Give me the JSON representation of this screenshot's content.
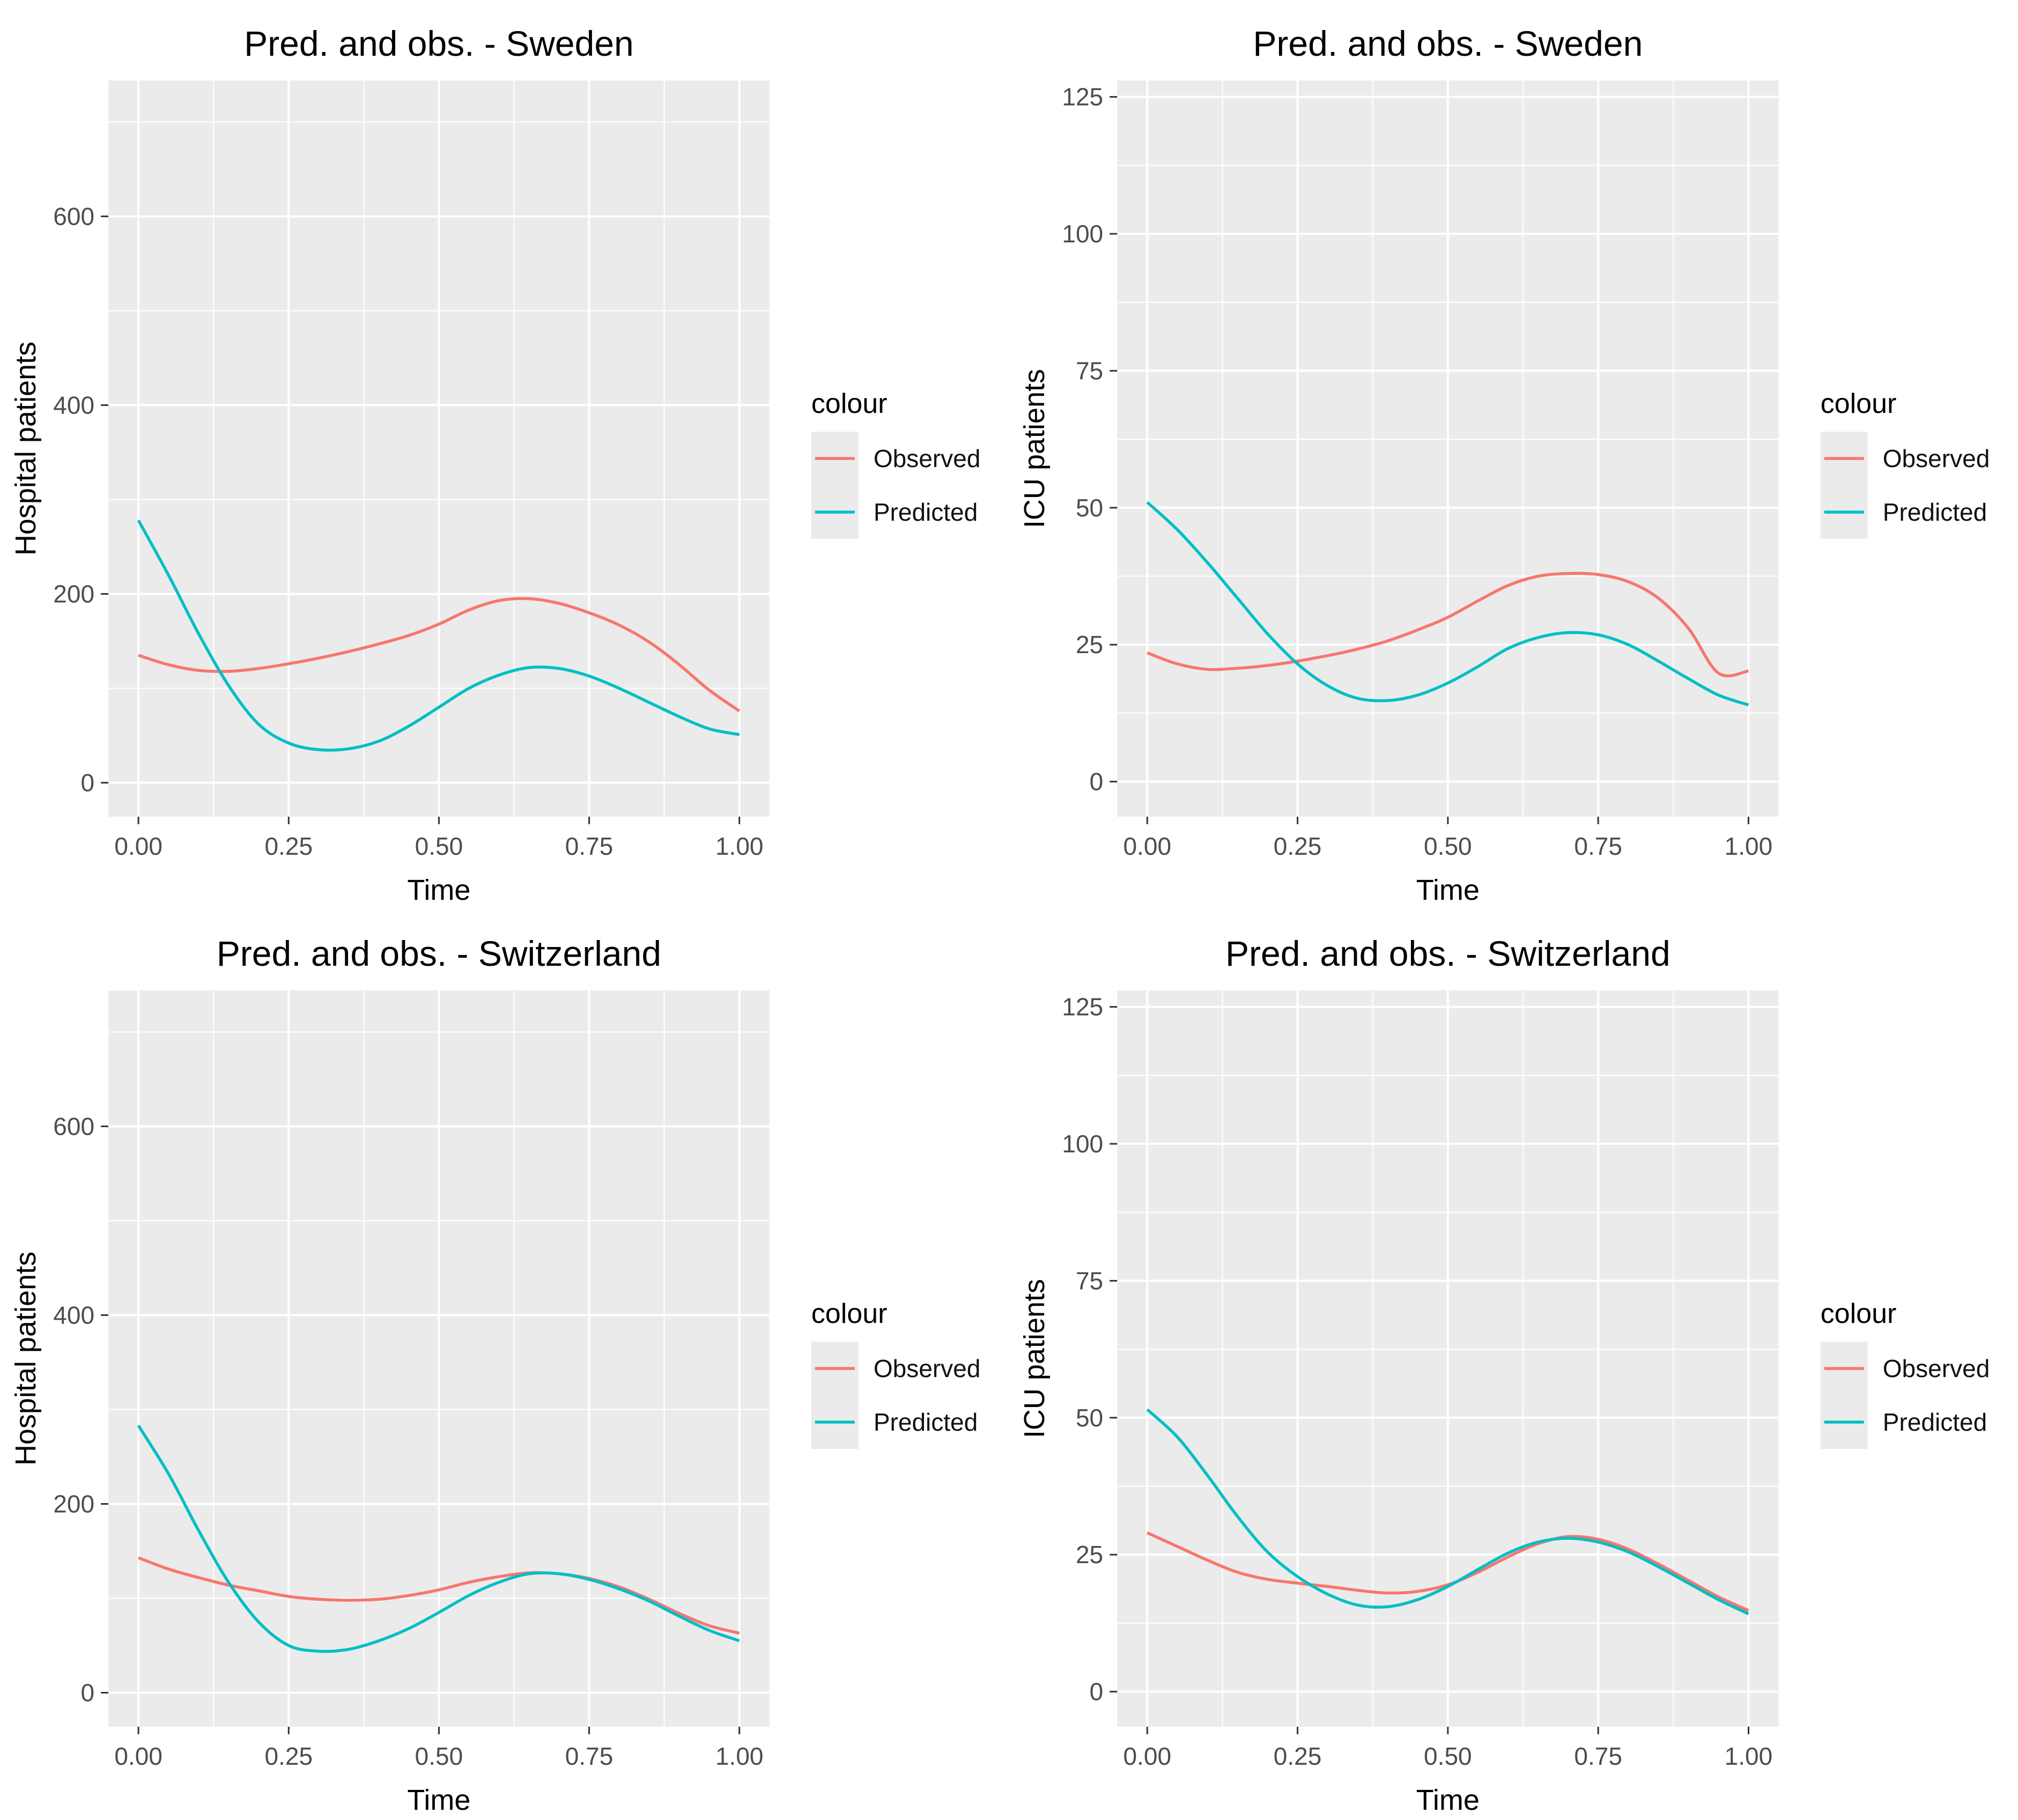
{
  "palette": {
    "observed": "#F8766D",
    "predicted": "#00BFC4",
    "panel_bg": "#EBEBEB",
    "grid_line": "#FFFFFF",
    "tick_mark": "#333333",
    "tick_label": "#4D4D4D",
    "text": "#000000"
  },
  "legend": {
    "title": "colour",
    "entries": [
      {
        "label": "Observed",
        "color": "#F8766D"
      },
      {
        "label": "Predicted",
        "color": "#00BFC4"
      }
    ]
  },
  "chart_data": [
    {
      "type": "line",
      "title": "Pred. and obs. - Sweden",
      "xlabel": "Time",
      "ylabel": "Hospital patients",
      "legend_title": "colour",
      "legend_position": "right",
      "grid": true,
      "xlim": [
        -0.05,
        1.05
      ],
      "ylim": [
        -36,
        744
      ],
      "x_ticks": {
        "values": [
          0,
          0.25,
          0.5,
          0.75,
          1.0
        ],
        "labels": [
          "0.00",
          "0.25",
          "0.50",
          "0.75",
          "1.00"
        ]
      },
      "y_ticks": {
        "values": [
          0,
          200,
          400,
          600
        ],
        "labels": [
          "0",
          "200",
          "400",
          "600"
        ]
      },
      "x_minor": [
        0.125,
        0.375,
        0.625,
        0.875
      ],
      "y_minor": [
        100,
        300,
        500,
        700
      ],
      "x": [
        0,
        0.05,
        0.1,
        0.15,
        0.2,
        0.25,
        0.3,
        0.35,
        0.4,
        0.45,
        0.5,
        0.55,
        0.6,
        0.65,
        0.7,
        0.75,
        0.8,
        0.85,
        0.9,
        0.95,
        1.0
      ],
      "series": [
        {
          "name": "Observed",
          "color": "#F8766D",
          "values": [
            135,
            125,
            119,
            118,
            121,
            126,
            132,
            139,
            147,
            156,
            168,
            183,
            193,
            195,
            190,
            180,
            167,
            149,
            125,
            98,
            76
          ]
        },
        {
          "name": "Predicted",
          "color": "#00BFC4",
          "values": [
            278,
            220,
            158,
            103,
            62,
            42,
            35,
            36,
            44,
            60,
            80,
            100,
            114,
            122,
            121,
            113,
            100,
            85,
            70,
            57,
            51
          ]
        }
      ]
    },
    {
      "type": "line",
      "title": "Pred. and obs. - Sweden",
      "xlabel": "Time",
      "ylabel": "ICU patients",
      "legend_title": "colour",
      "legend_position": "right",
      "grid": true,
      "xlim": [
        -0.05,
        1.05
      ],
      "ylim": [
        -6.4,
        128
      ],
      "x_ticks": {
        "values": [
          0,
          0.25,
          0.5,
          0.75,
          1.0
        ],
        "labels": [
          "0.00",
          "0.25",
          "0.50",
          "0.75",
          "1.00"
        ]
      },
      "y_ticks": {
        "values": [
          0,
          25,
          50,
          75,
          100,
          125
        ],
        "labels": [
          "0",
          "25",
          "50",
          "75",
          "100",
          "125"
        ]
      },
      "x_minor": [
        0.125,
        0.375,
        0.625,
        0.875
      ],
      "y_minor": [
        12.5,
        37.5,
        62.5,
        87.5,
        112.5
      ],
      "x": [
        0,
        0.05,
        0.1,
        0.15,
        0.2,
        0.25,
        0.3,
        0.35,
        0.4,
        0.45,
        0.5,
        0.55,
        0.6,
        0.65,
        0.7,
        0.75,
        0.8,
        0.85,
        0.9,
        0.95,
        1.0
      ],
      "series": [
        {
          "name": "Observed",
          "color": "#F8766D",
          "values": [
            23.5,
            21.5,
            20.5,
            20.7,
            21.2,
            22,
            23,
            24.2,
            25.7,
            27.7,
            30,
            33,
            35.8,
            37.5,
            38,
            37.8,
            36.5,
            33.5,
            28,
            19.8,
            20.2
          ]
        },
        {
          "name": "Predicted",
          "color": "#00BFC4",
          "values": [
            51,
            46,
            40,
            33.5,
            27,
            21.5,
            17.5,
            15.2,
            14.8,
            15.8,
            18,
            21,
            24.3,
            26.3,
            27.2,
            26.8,
            25,
            22,
            18.8,
            15.8,
            14
          ]
        }
      ]
    },
    {
      "type": "line",
      "title": "Pred. and obs. - Switzerland",
      "xlabel": "Time",
      "ylabel": "Hospital patients",
      "legend_title": "colour",
      "legend_position": "right",
      "grid": true,
      "xlim": [
        -0.05,
        1.05
      ],
      "ylim": [
        -36,
        744
      ],
      "x_ticks": {
        "values": [
          0,
          0.25,
          0.5,
          0.75,
          1.0
        ],
        "labels": [
          "0.00",
          "0.25",
          "0.50",
          "0.75",
          "1.00"
        ]
      },
      "y_ticks": {
        "values": [
          0,
          200,
          400,
          600
        ],
        "labels": [
          "0",
          "200",
          "400",
          "600"
        ]
      },
      "x_minor": [
        0.125,
        0.375,
        0.625,
        0.875
      ],
      "y_minor": [
        100,
        300,
        500,
        700
      ],
      "x": [
        0,
        0.05,
        0.1,
        0.15,
        0.2,
        0.25,
        0.3,
        0.35,
        0.4,
        0.45,
        0.5,
        0.55,
        0.6,
        0.65,
        0.7,
        0.75,
        0.8,
        0.85,
        0.9,
        0.95,
        1.0
      ],
      "series": [
        {
          "name": "Observed",
          "color": "#F8766D",
          "values": [
            143,
            131,
            122,
            114,
            108,
            102,
            99,
            98,
            99,
            103,
            109,
            117,
            123,
            127,
            126,
            121,
            112,
            99,
            84,
            71,
            63
          ]
        },
        {
          "name": "Predicted",
          "color": "#00BFC4",
          "values": [
            283,
            232,
            172,
            117,
            75,
            50,
            44,
            46,
            55,
            68,
            85,
            103,
            117,
            126,
            126,
            120,
            110,
            97,
            81,
            66,
            55
          ]
        }
      ]
    },
    {
      "type": "line",
      "title": "Pred. and obs. - Switzerland",
      "xlabel": "Time",
      "ylabel": "ICU patients",
      "legend_title": "colour",
      "legend_position": "right",
      "grid": true,
      "xlim": [
        -0.05,
        1.05
      ],
      "ylim": [
        -6.4,
        128
      ],
      "x_ticks": {
        "values": [
          0,
          0.25,
          0.5,
          0.75,
          1.0
        ],
        "labels": [
          "0.00",
          "0.25",
          "0.50",
          "0.75",
          "1.00"
        ]
      },
      "y_ticks": {
        "values": [
          0,
          25,
          50,
          75,
          100,
          125
        ],
        "labels": [
          "0",
          "25",
          "50",
          "75",
          "100",
          "125"
        ]
      },
      "x_minor": [
        0.125,
        0.375,
        0.625,
        0.875
      ],
      "y_minor": [
        12.5,
        37.5,
        62.5,
        87.5,
        112.5
      ],
      "x": [
        0,
        0.05,
        0.1,
        0.15,
        0.2,
        0.25,
        0.3,
        0.35,
        0.4,
        0.45,
        0.5,
        0.55,
        0.6,
        0.65,
        0.7,
        0.75,
        0.8,
        0.85,
        0.9,
        0.95,
        1.0
      ],
      "series": [
        {
          "name": "Observed",
          "color": "#F8766D",
          "values": [
            29,
            26.5,
            24,
            21.8,
            20.5,
            19.8,
            19.2,
            18.5,
            18,
            18.3,
            19.5,
            21.8,
            24.6,
            27,
            28.3,
            27.8,
            26,
            23.3,
            20.3,
            17.3,
            14.8
          ]
        },
        {
          "name": "Predicted",
          "color": "#00BFC4",
          "values": [
            51.5,
            46.5,
            39.5,
            32,
            25.5,
            21,
            17.8,
            15.8,
            15.5,
            16.8,
            19.2,
            22.3,
            25.3,
            27.3,
            28,
            27.3,
            25.5,
            22.8,
            19.8,
            16.8,
            14.2
          ]
        }
      ]
    }
  ]
}
